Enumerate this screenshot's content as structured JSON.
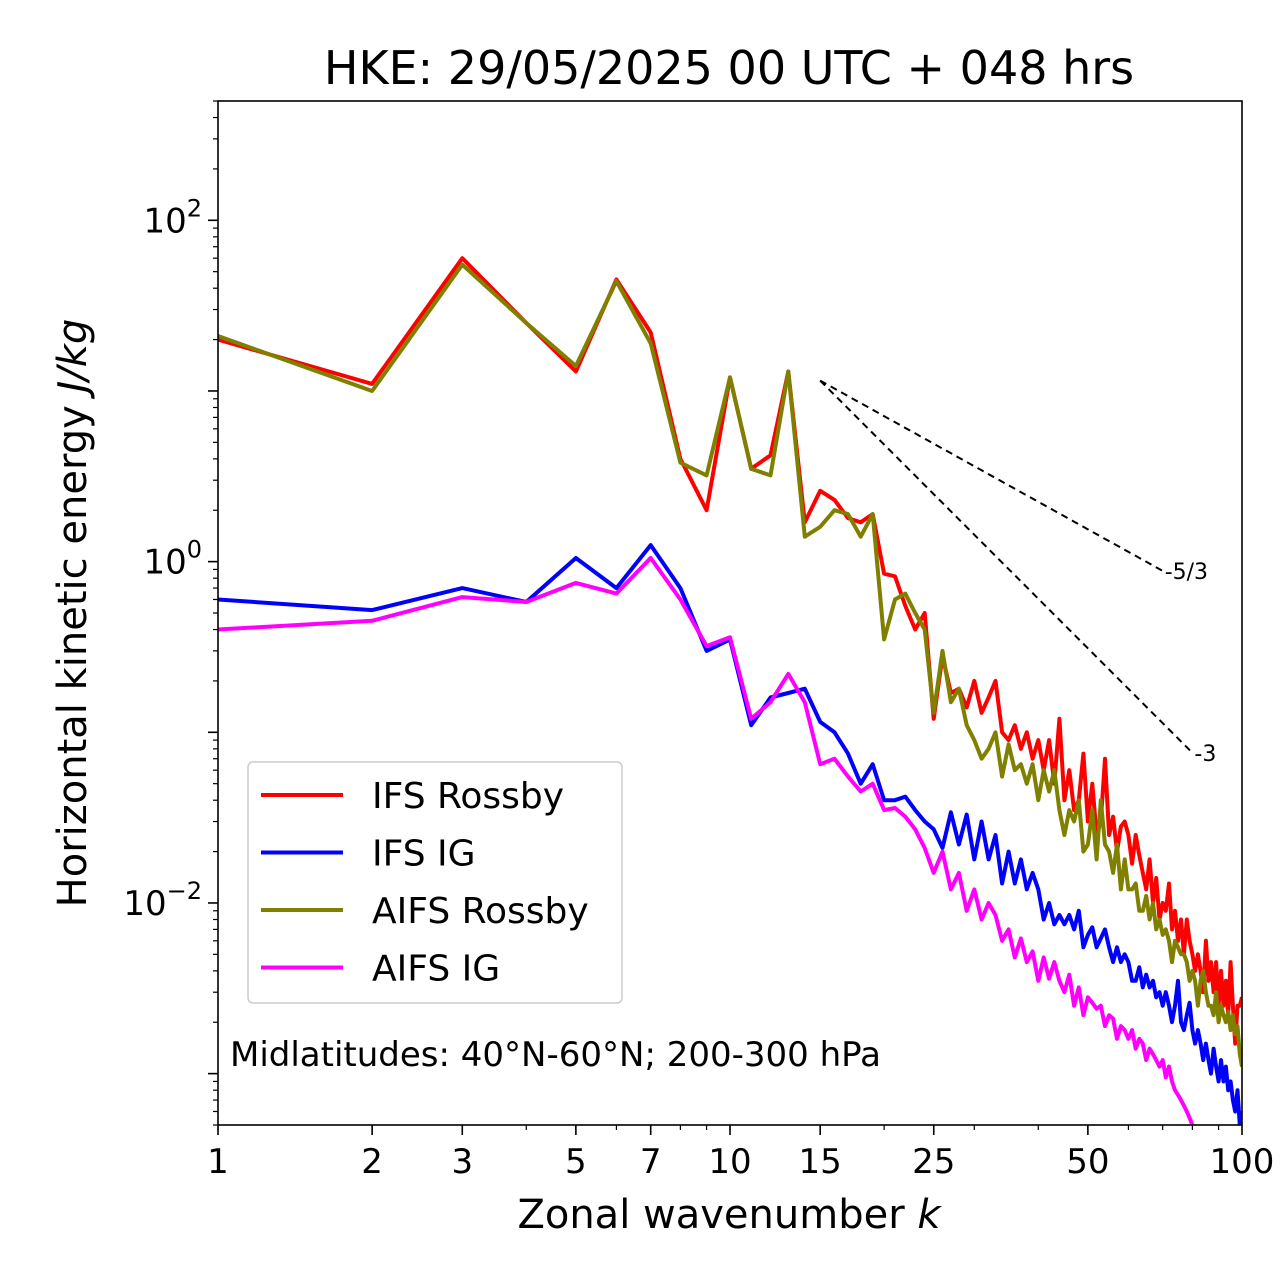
{
  "chart_data": {
    "type": "line",
    "title": "HKE: 29/05/2025 00 UTC + 048 hrs",
    "xlabel": "Zonal wavenumber",
    "xlabel_var": "k",
    "ylabel": "Horizontal kinetic energy",
    "ylabel_unit": "J/kg",
    "xscale": "log",
    "yscale": "log",
    "xlim": [
      1,
      100
    ],
    "ylim": [
      0.0005,
      500
    ],
    "xticks": [
      1,
      2,
      3,
      5,
      7,
      10,
      15,
      25,
      50,
      100
    ],
    "xtick_labels": [
      "1",
      "2",
      "3",
      "5",
      "7",
      "10",
      "15",
      "25",
      "50",
      "100"
    ],
    "yticks": [
      {
        "value": 100,
        "base": "10",
        "exp": "2"
      },
      {
        "value": 1,
        "base": "10",
        "exp": "0"
      },
      {
        "value": 0.01,
        "base": "10",
        "exp": "−2"
      }
    ],
    "grid": false,
    "legend_position": "lower-left",
    "annotation": "Midlatitudes: 40°N-60°N; 200-300 hPa",
    "reference_slopes": [
      {
        "label": "-5/3",
        "slope": -1.6667,
        "x": [
          15,
          70
        ],
        "y0": 11.5
      },
      {
        "label": "-3",
        "slope": -3,
        "x": [
          15,
          80
        ],
        "y0": 11.5
      }
    ],
    "series": [
      {
        "name": "IFS Rossby",
        "color": "#ff0000",
        "x": [
          1,
          2,
          3,
          4,
          5,
          6,
          7,
          8,
          9,
          10,
          11,
          12,
          13,
          14,
          15,
          16,
          17,
          18,
          19,
          20,
          21,
          22,
          23,
          24,
          25,
          26,
          27,
          28,
          29,
          30,
          31,
          32,
          33,
          34,
          35,
          36,
          37,
          38,
          39,
          40,
          41,
          42,
          43,
          44,
          45,
          46,
          47,
          48,
          49,
          50,
          51,
          52,
          53,
          54,
          55,
          56,
          57,
          58,
          59,
          60,
          61,
          62,
          63,
          64,
          65,
          66,
          67,
          68,
          69,
          70,
          71,
          72,
          73,
          74,
          75,
          76,
          77,
          78,
          79,
          80,
          81,
          82,
          83,
          84,
          85,
          86,
          87,
          88,
          89,
          90,
          91,
          92,
          93,
          94,
          95,
          96,
          97,
          98,
          99,
          100
        ],
        "y": [
          20.0,
          11.0,
          60.0,
          25.0,
          13.0,
          45.0,
          22.0,
          4.0,
          2.0,
          12.0,
          3.5,
          4.2,
          13.0,
          1.7,
          2.6,
          2.3,
          1.8,
          1.7,
          1.9,
          0.85,
          0.82,
          0.55,
          0.4,
          0.5,
          0.12,
          0.28,
          0.17,
          0.18,
          0.14,
          0.2,
          0.13,
          0.16,
          0.2,
          0.1,
          0.09,
          0.11,
          0.08,
          0.1,
          0.07,
          0.09,
          0.06,
          0.09,
          0.05,
          0.12,
          0.04,
          0.06,
          0.035,
          0.04,
          0.075,
          0.03,
          0.05,
          0.025,
          0.03,
          0.07,
          0.025,
          0.032,
          0.02,
          0.028,
          0.03,
          0.025,
          0.017,
          0.025,
          0.019,
          0.015,
          0.012,
          0.018,
          0.01,
          0.014,
          0.008,
          0.01,
          0.009,
          0.013,
          0.007,
          0.009,
          0.006,
          0.008,
          0.005,
          0.008,
          0.006,
          0.005,
          0.004,
          0.005,
          0.004,
          0.003,
          0.006,
          0.0035,
          0.0045,
          0.003,
          0.0045,
          0.0025,
          0.004,
          0.0025,
          0.0035,
          0.0022,
          0.0045,
          0.0025,
          0.0015,
          0.0025,
          0.0025,
          0.0028
        ]
      },
      {
        "name": "IFS IG",
        "color": "#0000ff",
        "x": [
          1,
          2,
          3,
          4,
          5,
          6,
          7,
          8,
          9,
          10,
          11,
          12,
          13,
          14,
          15,
          16,
          17,
          18,
          19,
          20,
          21,
          22,
          23,
          24,
          25,
          26,
          27,
          28,
          29,
          30,
          31,
          32,
          33,
          34,
          35,
          36,
          37,
          38,
          39,
          40,
          41,
          42,
          43,
          44,
          45,
          46,
          47,
          48,
          49,
          50,
          51,
          52,
          53,
          54,
          55,
          56,
          57,
          58,
          59,
          60,
          61,
          62,
          63,
          64,
          65,
          66,
          67,
          68,
          69,
          70,
          71,
          72,
          73,
          74,
          75,
          76,
          77,
          78,
          79,
          80,
          81,
          82,
          83,
          84,
          85,
          86,
          87,
          88,
          89,
          90,
          91,
          92,
          93,
          94,
          95,
          96,
          97,
          98,
          99,
          100
        ],
        "y": [
          0.6,
          0.52,
          0.7,
          0.58,
          1.05,
          0.7,
          1.25,
          0.7,
          0.3,
          0.35,
          0.11,
          0.16,
          0.17,
          0.18,
          0.115,
          0.1,
          0.075,
          0.05,
          0.065,
          0.04,
          0.04,
          0.042,
          0.035,
          0.03,
          0.027,
          0.021,
          0.034,
          0.022,
          0.033,
          0.018,
          0.03,
          0.018,
          0.025,
          0.013,
          0.02,
          0.013,
          0.018,
          0.012,
          0.015,
          0.012,
          0.008,
          0.01,
          0.0075,
          0.0085,
          0.0075,
          0.0085,
          0.007,
          0.009,
          0.0055,
          0.0065,
          0.0072,
          0.0055,
          0.0062,
          0.007,
          0.0055,
          0.0045,
          0.0055,
          0.0045,
          0.005,
          0.0045,
          0.0035,
          0.0035,
          0.0042,
          0.0032,
          0.0038,
          0.0032,
          0.0035,
          0.0028,
          0.003,
          0.0025,
          0.003,
          0.0025,
          0.002,
          0.0025,
          0.0035,
          0.002,
          0.0018,
          0.0022,
          0.0026,
          0.0018,
          0.0015,
          0.0018,
          0.0015,
          0.0012,
          0.0015,
          0.0012,
          0.001,
          0.0014,
          0.0011,
          0.0009,
          0.0012,
          0.0009,
          0.0011,
          0.0008,
          0.0009,
          0.0007,
          0.0006,
          0.0008,
          0.0005,
          0.0006
        ]
      },
      {
        "name": "AIFS Rossby",
        "color": "#808000",
        "x": [
          1,
          2,
          3,
          4,
          5,
          6,
          7,
          8,
          9,
          10,
          11,
          12,
          13,
          14,
          15,
          16,
          17,
          18,
          19,
          20,
          21,
          22,
          23,
          24,
          25,
          26,
          27,
          28,
          29,
          30,
          31,
          32,
          33,
          34,
          35,
          36,
          37,
          38,
          39,
          40,
          41,
          42,
          43,
          44,
          45,
          46,
          47,
          48,
          49,
          50,
          51,
          52,
          53,
          54,
          55,
          56,
          57,
          58,
          59,
          60,
          61,
          62,
          63,
          64,
          65,
          66,
          67,
          68,
          69,
          70,
          71,
          72,
          73,
          74,
          75,
          76,
          77,
          78,
          79,
          80,
          81,
          82,
          83,
          84,
          85,
          86,
          87,
          88,
          89,
          90,
          91,
          92,
          93,
          94,
          95,
          96,
          97,
          98,
          99,
          100
        ],
        "y": [
          21.0,
          10.0,
          55.0,
          25.0,
          14.0,
          44.0,
          19.0,
          3.8,
          3.2,
          12.0,
          3.5,
          3.2,
          13.0,
          1.4,
          1.6,
          2.0,
          1.9,
          1.4,
          1.9,
          0.35,
          0.6,
          0.65,
          0.5,
          0.4,
          0.13,
          0.3,
          0.15,
          0.18,
          0.11,
          0.09,
          0.07,
          0.08,
          0.1,
          0.055,
          0.085,
          0.06,
          0.065,
          0.05,
          0.065,
          0.04,
          0.06,
          0.045,
          0.06,
          0.035,
          0.025,
          0.035,
          0.03,
          0.04,
          0.02,
          0.022,
          0.035,
          0.018,
          0.04,
          0.022,
          0.02,
          0.015,
          0.022,
          0.012,
          0.018,
          0.012,
          0.012,
          0.013,
          0.009,
          0.009,
          0.011,
          0.008,
          0.01,
          0.007,
          0.008,
          0.0065,
          0.007,
          0.006,
          0.0045,
          0.006,
          0.0055,
          0.005,
          0.005,
          0.0045,
          0.0035,
          0.004,
          0.0035,
          0.0025,
          0.0035,
          0.004,
          0.003,
          0.0025,
          0.0025,
          0.0022,
          0.003,
          0.002,
          0.0025,
          0.0022,
          0.002,
          0.0023,
          0.0018,
          0.0022,
          0.0017,
          0.0019,
          0.0013,
          0.0011
        ]
      },
      {
        "name": "AIFS IG",
        "color": "#ff00ff",
        "x": [
          1,
          2,
          3,
          4,
          5,
          6,
          7,
          8,
          9,
          10,
          11,
          12,
          13,
          14,
          15,
          16,
          17,
          18,
          19,
          20,
          21,
          22,
          23,
          24,
          25,
          26,
          27,
          28,
          29,
          30,
          31,
          32,
          33,
          34,
          35,
          36,
          37,
          38,
          39,
          40,
          41,
          42,
          43,
          44,
          45,
          46,
          47,
          48,
          49,
          50,
          51,
          52,
          53,
          54,
          55,
          56,
          57,
          58,
          59,
          60,
          61,
          62,
          63,
          64,
          65,
          66,
          67,
          68,
          69,
          70,
          71,
          72,
          73,
          74,
          75,
          76,
          77,
          78,
          79,
          80
        ],
        "y": [
          0.4,
          0.45,
          0.62,
          0.58,
          0.75,
          0.65,
          1.05,
          0.6,
          0.32,
          0.36,
          0.12,
          0.15,
          0.22,
          0.15,
          0.065,
          0.07,
          0.055,
          0.045,
          0.05,
          0.035,
          0.036,
          0.032,
          0.027,
          0.021,
          0.015,
          0.02,
          0.012,
          0.015,
          0.009,
          0.012,
          0.008,
          0.01,
          0.0085,
          0.006,
          0.007,
          0.0048,
          0.0062,
          0.0045,
          0.0052,
          0.0035,
          0.0048,
          0.0036,
          0.0045,
          0.0035,
          0.003,
          0.0038,
          0.0025,
          0.0032,
          0.0022,
          0.0028,
          0.0026,
          0.0024,
          0.0025,
          0.0019,
          0.0022,
          0.0021,
          0.0016,
          0.0019,
          0.0018,
          0.0016,
          0.0018,
          0.0014,
          0.0016,
          0.0015,
          0.0012,
          0.0014,
          0.0013,
          0.0012,
          0.0011,
          0.0012,
          0.00095,
          0.0011,
          0.0009,
          0.0008,
          0.00075,
          0.0007,
          0.00065,
          0.0006,
          0.00055,
          0.0005
        ]
      }
    ]
  }
}
